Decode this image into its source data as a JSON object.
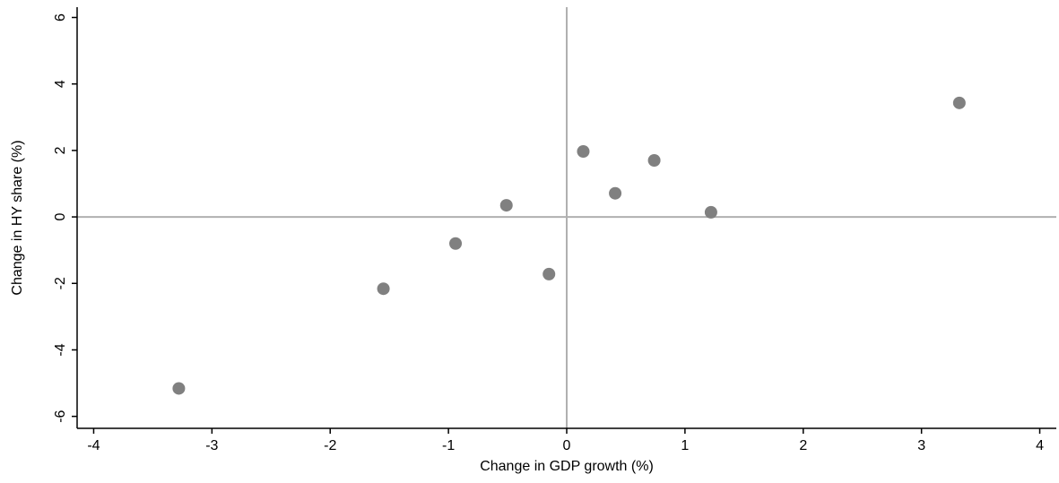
{
  "chart_data": {
    "type": "scatter",
    "x_label": "Change in GDP growth (%)",
    "y_label": "Change in HY share (%)",
    "x": [
      -3.28,
      -1.55,
      -0.94,
      -0.51,
      -0.15,
      0.14,
      0.41,
      0.74,
      1.22,
      3.32
    ],
    "values": [
      -5.16,
      -2.16,
      -0.8,
      0.35,
      -1.72,
      1.97,
      0.71,
      1.7,
      0.14,
      3.43
    ],
    "color": "#808080",
    "zero_lines": true,
    "xlim": [
      -4.14,
      4.14
    ],
    "xticks": [
      -4,
      -3,
      -2,
      -1,
      0,
      1,
      2,
      3,
      4
    ],
    "ylim": [
      -6.36,
      6.31
    ],
    "yticks": [
      -6,
      -4,
      -2,
      0,
      2,
      4,
      6
    ]
  }
}
